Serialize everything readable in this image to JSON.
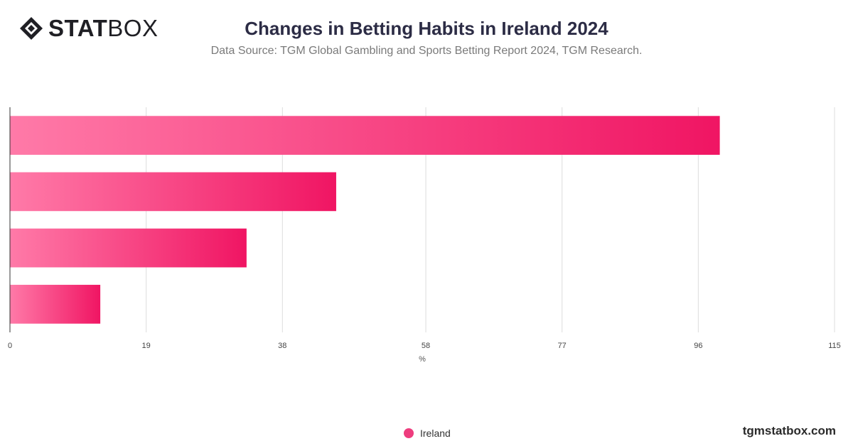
{
  "header": {
    "logo": {
      "bold": "STAT",
      "light": "BOX"
    },
    "title": "Changes in Betting Habits in Ireland 2024",
    "subtitle": "Data Source: TGM Global Gambling and Sports Betting Report 2024, TGM Research."
  },
  "chart_data": {
    "type": "bar",
    "orientation": "horizontal",
    "categories": [
      "",
      "",
      "",
      ""
    ],
    "series": [
      {
        "name": "Ireland",
        "values": [
          99,
          45.5,
          33,
          12.6
        ]
      }
    ],
    "xlabel": "%",
    "xlim": [
      0,
      115
    ],
    "xticks": [
      "0",
      "19",
      "38",
      "58",
      "77",
      "96",
      "115"
    ],
    "grid": true,
    "legend": "bottom-center",
    "colors": {
      "bar_light": "#ff7aa8",
      "bar_dark": "#f01563"
    }
  },
  "legend": {
    "label": "Ireland"
  },
  "footer": {
    "brand": "tgmstatbox.com"
  }
}
